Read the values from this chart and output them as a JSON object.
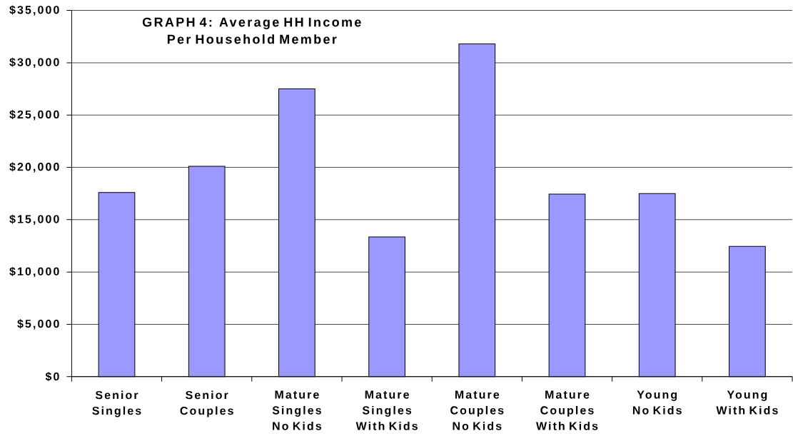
{
  "chart_data": {
    "type": "bar",
    "title": "GRAPH 4: Average HH Income Per Household Member",
    "categories": [
      "Senior Singles",
      "Senior Couples",
      "Mature Singles No Kids",
      "Mature Singles With Kids",
      "Mature Couples No Kids",
      "Mature Couples With Kids",
      "Young No Kids",
      "Young With Kids"
    ],
    "values": [
      17600,
      20100,
      27500,
      13350,
      31800,
      17450,
      17500,
      12450
    ],
    "color": "#9999ff",
    "ylim": [
      0,
      35000
    ],
    "yticks": [
      {
        "value": 0,
        "label": "$0"
      },
      {
        "value": 5000,
        "label": "$5,000"
      },
      {
        "value": 10000,
        "label": "$10,000"
      },
      {
        "value": 15000,
        "label": "$15,000"
      },
      {
        "value": 20000,
        "label": "$20,000"
      },
      {
        "value": 25000,
        "label": "$25,000"
      },
      {
        "value": 30000,
        "label": "$30,000"
      },
      {
        "value": 35000,
        "label": "$35,000"
      }
    ],
    "grid": "y"
  }
}
